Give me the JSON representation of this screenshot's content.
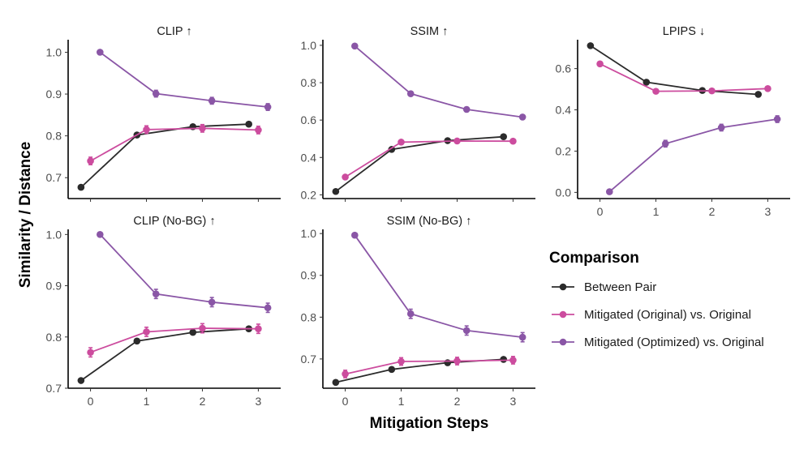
{
  "chart_data": {
    "type": "line",
    "x_axis_title": "Mitigation Steps",
    "y_axis_title": "Similarity / Distance",
    "x_ticks": [
      0,
      1,
      2,
      3
    ],
    "legend": {
      "title": "Comparison",
      "entries": [
        {
          "name": "Between Pair",
          "color": "#2b2b2b"
        },
        {
          "name": "Mitigated (Original) vs. Original",
          "color": "#cc4c9e"
        },
        {
          "name": "Mitigated (Optimized) vs. Original",
          "color": "#8a56a6"
        }
      ]
    },
    "panels": [
      {
        "id": "clip",
        "title": "CLIP ↑",
        "ylim": [
          0.65,
          1.03
        ],
        "yticks": [
          0.7,
          0.8,
          0.9,
          1.0
        ],
        "ytick_labels": [
          "0.7",
          "0.8",
          "0.9",
          "1.0"
        ],
        "series": [
          {
            "name": "Between Pair",
            "x": [
              -0.17,
              0.83,
              1.83,
              2.83
            ],
            "y": [
              0.677,
              0.802,
              0.822,
              0.828
            ],
            "err": [
              0,
              0,
              0,
              0
            ]
          },
          {
            "name": "Mitigated (Original) vs. Original",
            "x": [
              0,
              1,
              2,
              3
            ],
            "y": [
              0.74,
              0.815,
              0.818,
              0.814
            ],
            "err": [
              0.009,
              0.009,
              0.009,
              0.009
            ]
          },
          {
            "name": "Mitigated (Optimized) vs. Original",
            "x": [
              0.17,
              1.17,
              2.17,
              3.17
            ],
            "y": [
              1.0,
              0.901,
              0.884,
              0.869
            ],
            "err": [
              0,
              0.008,
              0.008,
              0.008
            ]
          }
        ]
      },
      {
        "id": "ssim",
        "title": "SSIM ↑",
        "ylim": [
          0.18,
          1.03
        ],
        "yticks": [
          0.2,
          0.4,
          0.6,
          0.8,
          1.0
        ],
        "ytick_labels": [
          "0.2",
          "0.4",
          "0.6",
          "0.8",
          "1.0"
        ],
        "series": [
          {
            "name": "Between Pair",
            "x": [
              -0.17,
              0.83,
              1.83,
              2.83
            ],
            "y": [
              0.218,
              0.443,
              0.49,
              0.511
            ],
            "err": [
              0,
              0,
              0,
              0
            ]
          },
          {
            "name": "Mitigated (Original) vs. Original",
            "x": [
              0,
              1,
              2,
              3
            ],
            "y": [
              0.295,
              0.482,
              0.488,
              0.487
            ],
            "err": [
              0.01,
              0.01,
              0.01,
              0.01
            ]
          },
          {
            "name": "Mitigated (Optimized) vs. Original",
            "x": [
              0.17,
              1.17,
              2.17,
              3.17
            ],
            "y": [
              0.996,
              0.741,
              0.657,
              0.616
            ],
            "err": [
              0,
              0.012,
              0.012,
              0.012
            ]
          }
        ]
      },
      {
        "id": "lpips",
        "title": "LPIPS ↓",
        "ylim": [
          -0.03,
          0.74
        ],
        "yticks": [
          0.0,
          0.2,
          0.4,
          0.6
        ],
        "ytick_labels": [
          "0.0",
          "0.2",
          "0.4",
          "0.6"
        ],
        "series": [
          {
            "name": "Between Pair",
            "x": [
              -0.17,
              0.83,
              1.83,
              2.83
            ],
            "y": [
              0.711,
              0.534,
              0.494,
              0.475
            ],
            "err": [
              0,
              0,
              0,
              0
            ]
          },
          {
            "name": "Mitigated (Original) vs. Original",
            "x": [
              0,
              1,
              2,
              3
            ],
            "y": [
              0.623,
              0.49,
              0.492,
              0.503
            ],
            "err": [
              0.008,
              0.008,
              0.008,
              0.008
            ]
          },
          {
            "name": "Mitigated (Optimized) vs. Original",
            "x": [
              0.17,
              1.17,
              2.17,
              3.17
            ],
            "y": [
              0.003,
              0.236,
              0.314,
              0.355
            ],
            "err": [
              0,
              0.016,
              0.016,
              0.016
            ]
          }
        ]
      },
      {
        "id": "clip-nobg",
        "title": "CLIP (No-BG) ↑",
        "ylim": [
          0.7,
          1.01
        ],
        "yticks": [
          0.7,
          0.8,
          0.9,
          1.0
        ],
        "ytick_labels": [
          "0.7",
          "0.8",
          "0.9",
          "1.0"
        ],
        "series": [
          {
            "name": "Between Pair",
            "x": [
              -0.17,
              0.83,
              1.83,
              2.83
            ],
            "y": [
              0.715,
              0.792,
              0.809,
              0.816
            ],
            "err": [
              0,
              0,
              0,
              0
            ]
          },
          {
            "name": "Mitigated (Original) vs. Original",
            "x": [
              0,
              1,
              2,
              3
            ],
            "y": [
              0.77,
              0.81,
              0.817,
              0.816
            ],
            "err": [
              0.009,
              0.009,
              0.009,
              0.009
            ]
          },
          {
            "name": "Mitigated (Optimized) vs. Original",
            "x": [
              0.17,
              1.17,
              2.17,
              3.17
            ],
            "y": [
              1.0,
              0.884,
              0.868,
              0.857
            ],
            "err": [
              0,
              0.009,
              0.009,
              0.009
            ]
          }
        ]
      },
      {
        "id": "ssim-nobg",
        "title": "SSIM (No-BG) ↑",
        "ylim": [
          0.63,
          1.01
        ],
        "yticks": [
          0.7,
          0.8,
          0.9,
          1.0
        ],
        "ytick_labels": [
          "0.7",
          "0.8",
          "0.9",
          "1.0"
        ],
        "series": [
          {
            "name": "Between Pair",
            "x": [
              -0.17,
              0.83,
              1.83,
              2.83
            ],
            "y": [
              0.644,
              0.675,
              0.691,
              0.699
            ],
            "err": [
              0,
              0,
              0,
              0
            ]
          },
          {
            "name": "Mitigated (Original) vs. Original",
            "x": [
              0,
              1,
              2,
              3
            ],
            "y": [
              0.664,
              0.694,
              0.695,
              0.697
            ],
            "err": [
              0.009,
              0.009,
              0.009,
              0.009
            ]
          },
          {
            "name": "Mitigated (Optimized) vs. Original",
            "x": [
              0.17,
              1.17,
              2.17,
              3.17
            ],
            "y": [
              0.996,
              0.808,
              0.768,
              0.752
            ],
            "err": [
              0,
              0.011,
              0.011,
              0.011
            ]
          }
        ]
      }
    ]
  }
}
